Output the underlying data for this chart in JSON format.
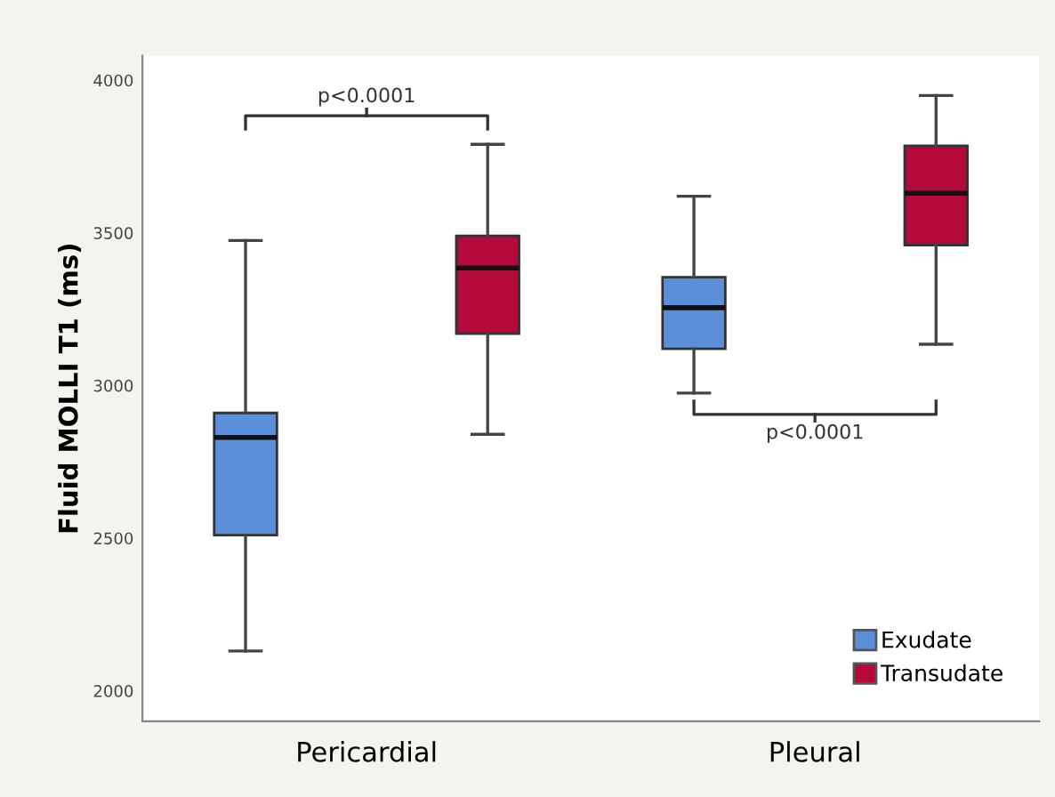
{
  "chart_data": {
    "type": "box",
    "ylabel": "Fluid MOLLI T1 (ms)",
    "categories": [
      "Pericardial",
      "Pleural"
    ],
    "ylim": [
      1900,
      4080
    ],
    "yticks": [
      2000,
      2500,
      3000,
      3500,
      4000
    ],
    "grid": false,
    "legend": "bottom right",
    "series": [
      {
        "name": "Exudate",
        "color": "#5b8fd8",
        "boxes": [
          {
            "low": 2130,
            "q1": 2510,
            "median": 2830,
            "q3": 2910,
            "high": 3475
          },
          {
            "low": 2975,
            "q1": 3120,
            "median": 3255,
            "q3": 3355,
            "high": 3620
          }
        ]
      },
      {
        "name": "Transudate",
        "color": "#b5083b",
        "boxes": [
          {
            "low": 2840,
            "q1": 3170,
            "median": 3385,
            "q3": 3490,
            "high": 3790
          },
          {
            "low": 3135,
            "q1": 3460,
            "median": 3630,
            "q3": 3785,
            "high": 3950
          }
        ]
      }
    ],
    "annotations": [
      "p<0.0001",
      "p<0.0001"
    ]
  }
}
